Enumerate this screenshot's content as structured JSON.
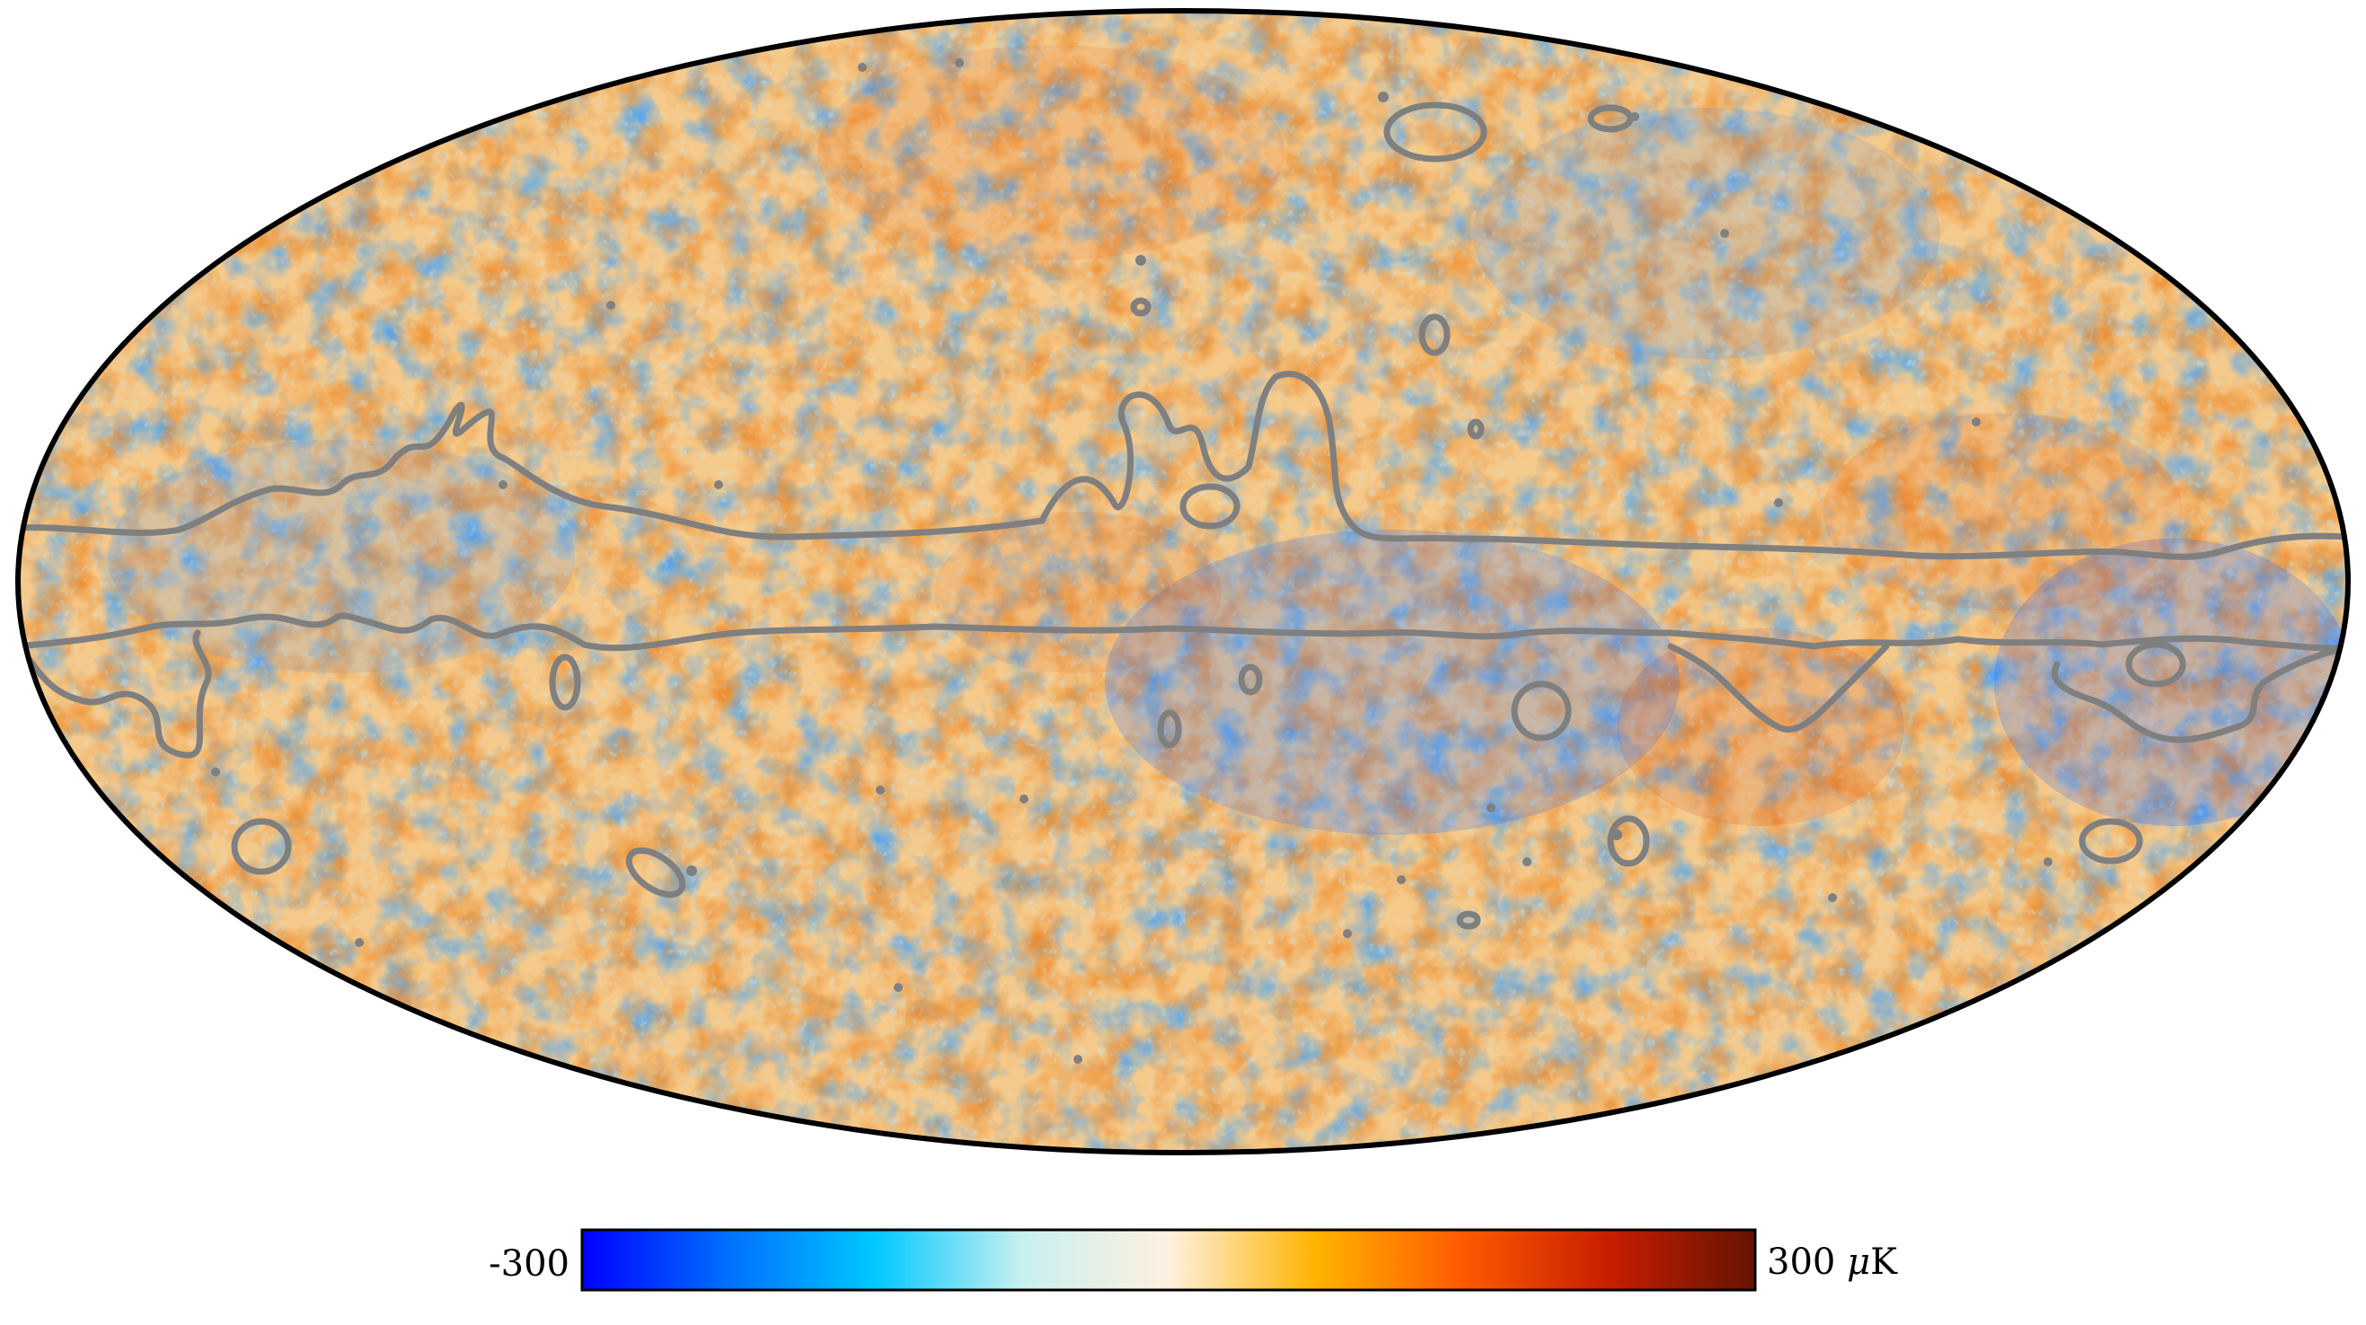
{
  "colorbar": {
    "min_label": "-300",
    "max_value": "300",
    "unit_symbol": "μ",
    "unit_letter": "K",
    "range": [
      -300,
      300
    ],
    "stops": [
      "#0000ff",
      "#0070ff",
      "#00c8ff",
      "#c8f0f0",
      "#fff0e0",
      "#ffb400",
      "#ff5a00",
      "#c81e00",
      "#641400"
    ]
  },
  "map": {
    "projection": "mollweide",
    "outline_color": "#000000",
    "mask_contour_color": "#7f7f7f"
  }
}
